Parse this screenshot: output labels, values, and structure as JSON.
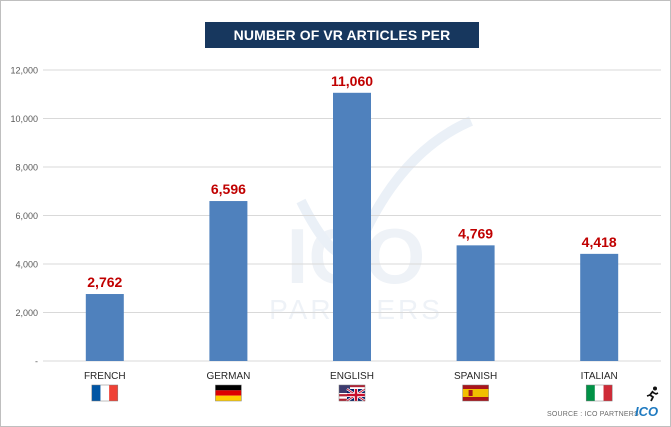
{
  "chart_data": {
    "type": "bar",
    "title": "NUMBER OF VR ARTICLES PER LANGUAGE",
    "categories": [
      "FRENCH",
      "GERMAN",
      "ENGLISH",
      "SPANISH",
      "ITALIAN"
    ],
    "values": [
      2762,
      6596,
      11060,
      4769,
      4418
    ],
    "value_labels": [
      "2,762",
      "6,596",
      "11,060",
      "4,769",
      "4,418"
    ],
    "yticks": [
      0,
      2000,
      4000,
      6000,
      8000,
      10000,
      12000
    ],
    "ytick_labels": [
      "-",
      "2,000",
      "4,000",
      "6,000",
      "8,000",
      "10,000",
      "12,000"
    ],
    "ylim": [
      0,
      12000
    ],
    "grid": true,
    "bar_color": "#4f81bd",
    "label_color": "#c00000",
    "xlabel": "",
    "ylabel": ""
  },
  "footer": {
    "source": "SOURCE : ICO PARTNERS",
    "logo": "ICO"
  },
  "watermark": {
    "text": "ICO",
    "subtext": "PARTNERS"
  },
  "flags": [
    "flag-france",
    "flag-germany",
    "flag-usa-uk",
    "flag-spain",
    "flag-italy"
  ]
}
